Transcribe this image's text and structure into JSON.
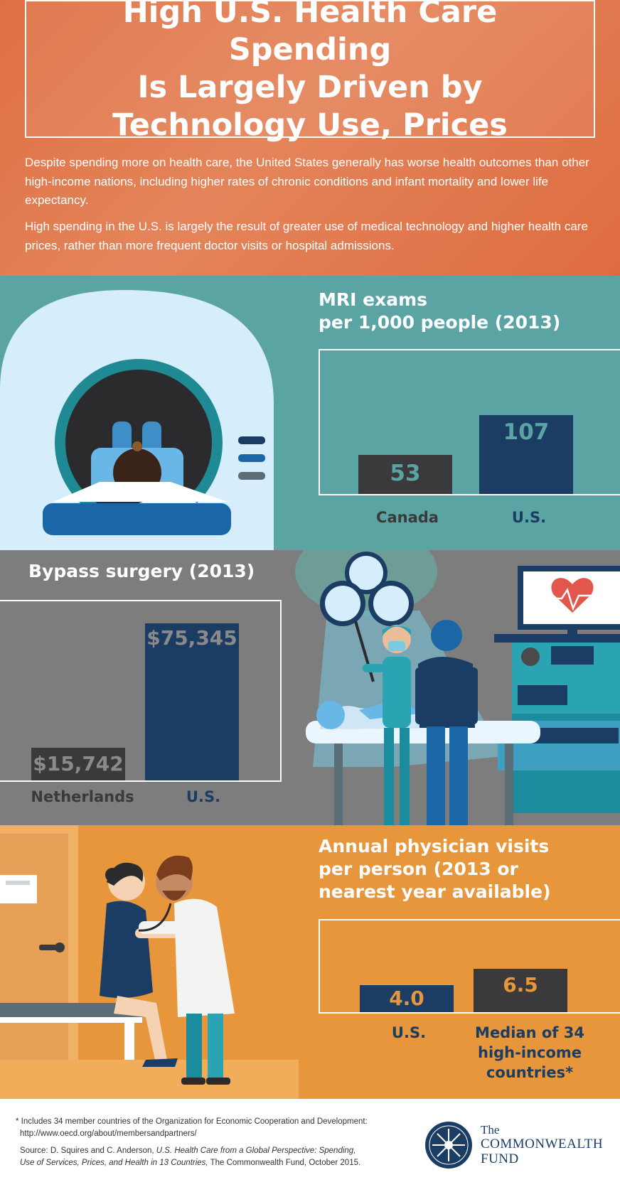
{
  "header": {
    "title_lines": [
      "High U.S. Health Care Spending",
      "Is Largely Driven by",
      "Technology Use, Prices"
    ],
    "intro_1": "Despite spending more on health care, the United States generally has worse health outcomes than other high-income nations, including higher rates of chronic conditions and infant mortality and lower life expectancy.",
    "intro_2": "High spending in the U.S. is largely the result of greater use of medical technology and higher health care prices, rather than more frequent doctor visits or hospital admissions."
  },
  "mri": {
    "title_lines": [
      "MRI exams",
      "per 1,000 people (2013)"
    ]
  },
  "bypass": {
    "title": "Bypass surgery (2013)"
  },
  "physician": {
    "title_lines": [
      "Annual physician visits",
      "per person (2013 or",
      "nearest year available)"
    ]
  },
  "chart_data": [
    {
      "type": "bar",
      "title": "MRI exams per 1,000 people (2013)",
      "categories": [
        "Canada",
        "U.S."
      ],
      "values": [
        53,
        107
      ],
      "value_labels": [
        "53",
        "107"
      ],
      "ylim": [
        0,
        120
      ]
    },
    {
      "type": "bar",
      "title": "Bypass surgery (2013)",
      "categories": [
        "Netherlands",
        "U.S."
      ],
      "values": [
        15742,
        75345
      ],
      "value_labels": [
        "$15,742",
        "$75,345"
      ],
      "ylim": [
        0,
        80000
      ]
    },
    {
      "type": "bar",
      "title": "Annual physician visits per person (2013 or nearest year available)",
      "categories": [
        "U.S.",
        "Median of 34 high-income countries*"
      ],
      "category_lines": [
        [
          "U.S."
        ],
        [
          "Median of 34",
          "high-income",
          "countries*"
        ]
      ],
      "values": [
        4.0,
        6.5
      ],
      "value_labels": [
        "4.0",
        "6.5"
      ],
      "ylim": [
        0,
        7
      ]
    }
  ],
  "footer": {
    "note_1": "* Includes 34 member countries of the Organization for Economic Cooperation and Development:",
    "note_url": "http://www.oecd.org/about/membersandpartners/",
    "source_prefix": "Source: D. Squires and C. Anderson, ",
    "source_title_1": "U.S. Health Care from a Global Perspective: Spending,",
    "source_title_2": "Use of Services, Prices, and Health in 13 Countries,",
    "source_suffix": " The Commonwealth Fund, October 2015.",
    "logo_the": "The",
    "logo_name": "COMMONWEALTH",
    "logo_fund": "FUND"
  },
  "colors": {
    "header_orange": "#de6f42",
    "teal": "#5aa4a4",
    "gray": "#7d7d7d",
    "orange": "#e8963b",
    "navy": "#1b3d63",
    "charcoal": "#3a3a3c"
  }
}
